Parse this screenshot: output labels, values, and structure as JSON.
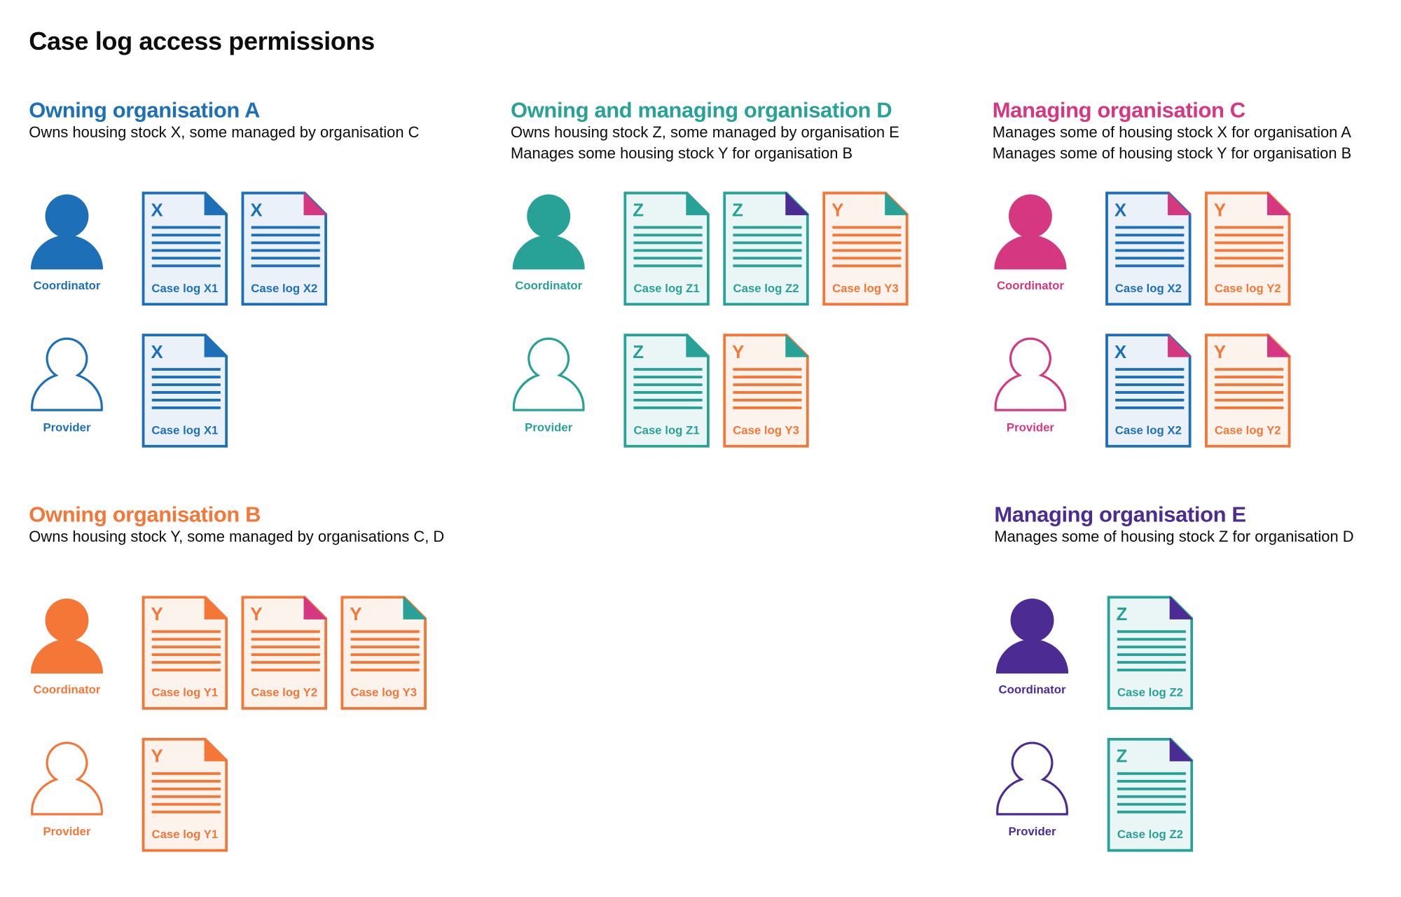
{
  "title": "Case log access permissions",
  "colors": {
    "blue": "#1d70b8",
    "teal": "#28a197",
    "pink": "#d53880",
    "orange": "#f47738",
    "purple": "#4c2c92"
  },
  "tints": {
    "blue": "#eaf1f8",
    "teal": "#eaf6f5",
    "orange": "#fdf3ed"
  },
  "sections": [
    {
      "heading": "Owning organisation A",
      "color": "blue",
      "description": [
        "Owns housing stock X, some managed by organisation C"
      ],
      "rows": [
        {
          "role": "Coordinator",
          "icon": "person-filled-icon",
          "docs": [
            {
              "letter": "X",
              "label": "Case log X1",
              "stock": "blue",
              "corner": "blue"
            },
            {
              "letter": "X",
              "label": "Case log X2",
              "stock": "blue",
              "corner": "pink"
            }
          ]
        },
        {
          "role": "Provider",
          "icon": "person-outline-icon",
          "docs": [
            {
              "letter": "X",
              "label": "Case log X1",
              "stock": "blue",
              "corner": "blue"
            }
          ]
        }
      ]
    },
    {
      "heading": "Owning and managing organisation D",
      "color": "teal",
      "description": [
        "Owns housing stock Z, some managed by organisation E",
        "Manages some housing stock Y for organisation B"
      ],
      "rows": [
        {
          "role": "Coordinator",
          "icon": "person-filled-icon",
          "docs": [
            {
              "letter": "Z",
              "label": "Case log Z1",
              "stock": "teal",
              "corner": "teal"
            },
            {
              "letter": "Z",
              "label": "Case log Z2",
              "stock": "teal",
              "corner": "purple"
            },
            {
              "letter": "Y",
              "label": "Case log Y3",
              "stock": "orange",
              "corner": "teal"
            }
          ]
        },
        {
          "role": "Provider",
          "icon": "person-outline-icon",
          "docs": [
            {
              "letter": "Z",
              "label": "Case log Z1",
              "stock": "teal",
              "corner": "teal"
            },
            {
              "letter": "Y",
              "label": "Case log Y3",
              "stock": "orange",
              "corner": "teal"
            }
          ]
        }
      ]
    },
    {
      "heading": "Managing organisation C",
      "color": "pink",
      "description": [
        "Manages some of housing stock X for organisation A",
        "Manages some of housing stock Y for organisation B"
      ],
      "rows": [
        {
          "role": "Coordinator",
          "icon": "person-filled-icon",
          "docs": [
            {
              "letter": "X",
              "label": "Case log X2",
              "stock": "blue",
              "corner": "pink"
            },
            {
              "letter": "Y",
              "label": "Case log Y2",
              "stock": "orange",
              "corner": "pink"
            }
          ]
        },
        {
          "role": "Provider",
          "icon": "person-outline-icon",
          "docs": [
            {
              "letter": "X",
              "label": "Case log X2",
              "stock": "blue",
              "corner": "pink"
            },
            {
              "letter": "Y",
              "label": "Case log Y2",
              "stock": "orange",
              "corner": "pink"
            }
          ]
        }
      ]
    },
    {
      "heading": "Owning organisation B",
      "color": "orange",
      "description": [
        "Owns housing stock Y, some managed by organisations C, D"
      ],
      "rows": [
        {
          "role": "Coordinator",
          "icon": "person-filled-icon",
          "docs": [
            {
              "letter": "Y",
              "label": "Case log Y1",
              "stock": "orange",
              "corner": "orange"
            },
            {
              "letter": "Y",
              "label": "Case log Y2",
              "stock": "orange",
              "corner": "pink"
            },
            {
              "letter": "Y",
              "label": "Case log Y3",
              "stock": "orange",
              "corner": "teal"
            }
          ]
        },
        {
          "role": "Provider",
          "icon": "person-outline-icon",
          "docs": [
            {
              "letter": "Y",
              "label": "Case log Y1",
              "stock": "orange",
              "corner": "orange"
            }
          ]
        }
      ]
    },
    {
      "heading": "Managing organisation E",
      "color": "purple",
      "description": [
        "Manages some of housing stock Z for organisation D"
      ],
      "rows": [
        {
          "role": "Coordinator",
          "icon": "person-filled-icon",
          "docs": [
            {
              "letter": "Z",
              "label": "Case log Z2",
              "stock": "teal",
              "corner": "purple"
            }
          ]
        },
        {
          "role": "Provider",
          "icon": "person-outline-icon",
          "docs": [
            {
              "letter": "Z",
              "label": "Case log Z2",
              "stock": "teal",
              "corner": "purple"
            }
          ]
        }
      ]
    }
  ]
}
